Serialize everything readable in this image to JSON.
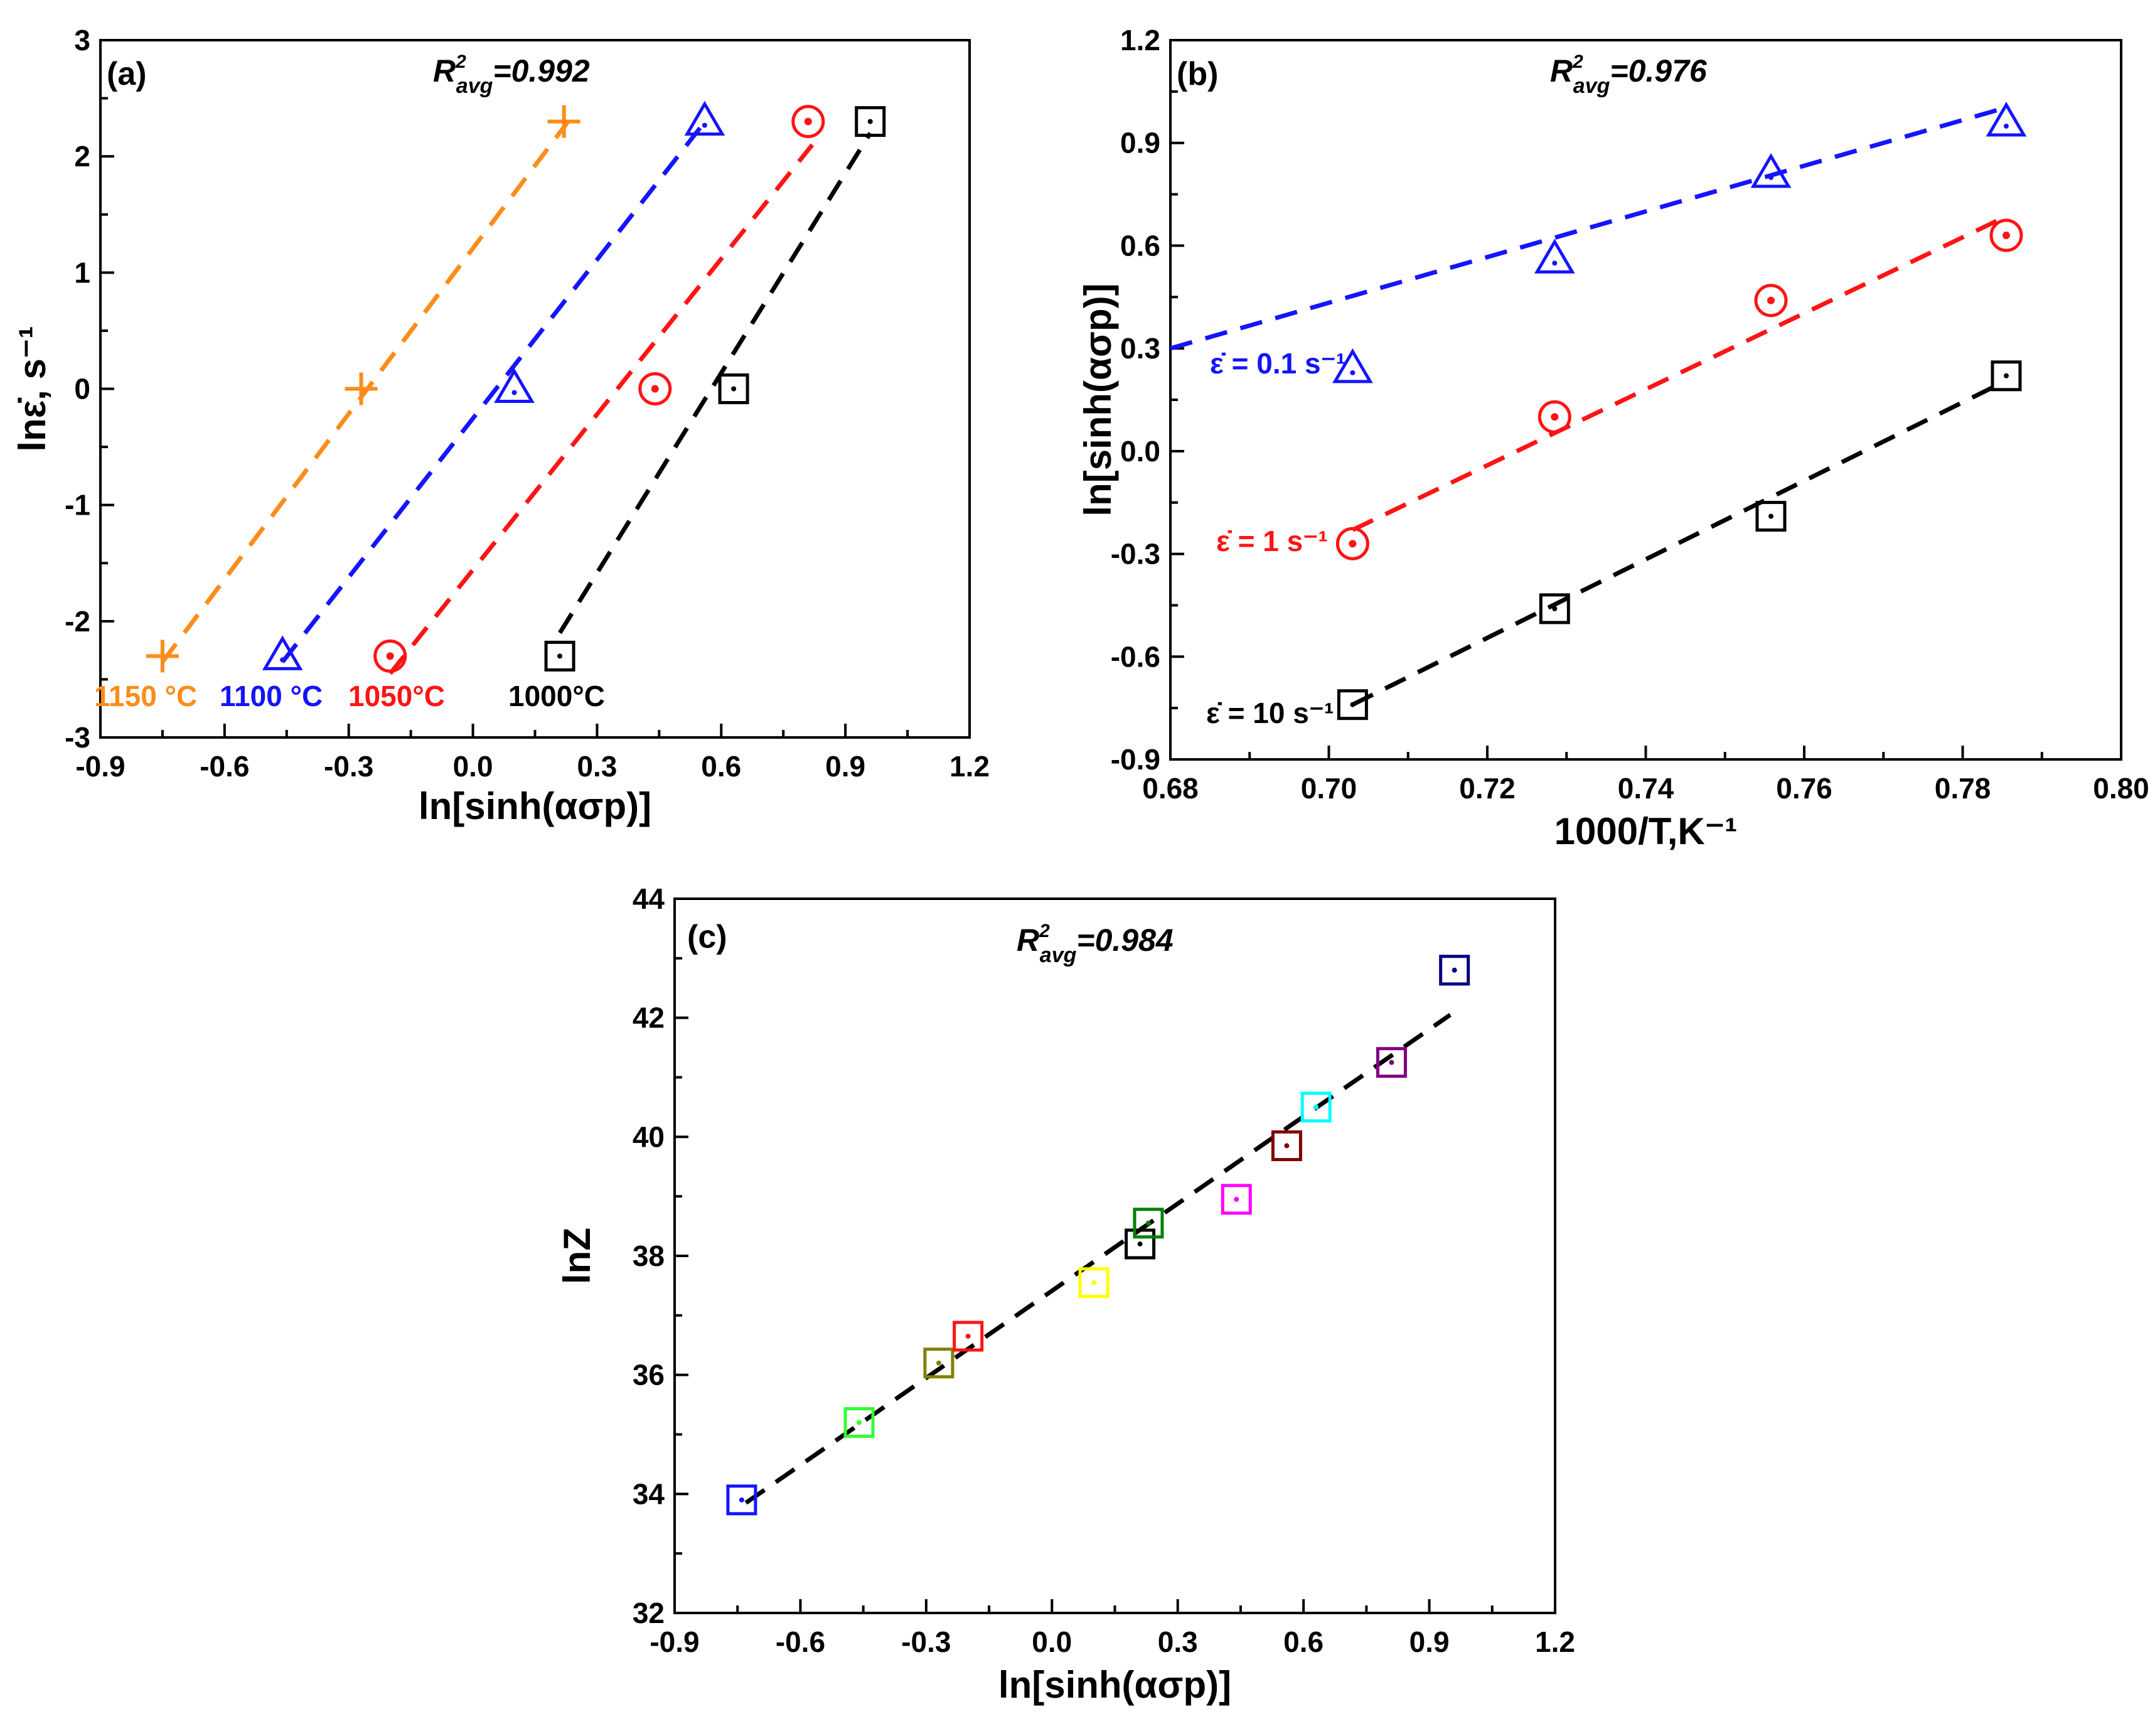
{
  "colors": {
    "orange": "#ff8c1a",
    "blue": "#1414ff",
    "red": "#ff1414",
    "black": "#000000"
  },
  "chart_data": [
    {
      "id": "a",
      "type": "scatter",
      "panel_label": "(a)",
      "r2": {
        "lead": "R",
        "sup": "2",
        "sub": "avg",
        "value": "=0.992"
      },
      "xlabel": "ln[sinh(ασp)]",
      "ylabel": "lnε̇, s⁻¹",
      "xlim": [
        -0.9,
        1.2
      ],
      "ylim": [
        -3,
        3
      ],
      "xticks": [
        -0.9,
        -0.6,
        -0.3,
        0.0,
        0.3,
        0.6,
        0.9,
        1.2
      ],
      "xtick_labels": [
        "-0.9",
        "-0.6",
        "-0.3",
        "0.0",
        "0.3",
        "0.6",
        "0.9",
        "1.2"
      ],
      "yticks": [
        -3,
        -2,
        -1,
        0,
        1,
        2,
        3
      ],
      "ytick_labels": [
        "-3",
        "-2",
        "-1",
        "0",
        "1",
        "2",
        "3"
      ],
      "series": [
        {
          "name": "1150 °C",
          "marker": "plus",
          "color": "#ff8c1a",
          "x": [
            -0.75,
            -0.27,
            0.22
          ],
          "y": [
            -2.3,
            0.0,
            2.3
          ],
          "fit": [
            [
              -0.75,
              -2.35
            ],
            [
              0.23,
              2.3
            ]
          ]
        },
        {
          "name": "1100 °C",
          "marker": "triangle",
          "color": "#1414ff",
          "x": [
            -0.46,
            0.1,
            0.56
          ],
          "y": [
            -2.3,
            0.0,
            2.3
          ],
          "fit": [
            [
              -0.46,
              -2.35
            ],
            [
              0.55,
              2.25
            ]
          ]
        },
        {
          "name": "1050°C",
          "marker": "circle",
          "color": "#ff1414",
          "x": [
            -0.2,
            0.44,
            0.81
          ],
          "y": [
            -2.3,
            0.0,
            2.3
          ],
          "fit": [
            [
              -0.2,
              -2.45
            ],
            [
              0.82,
              2.1
            ]
          ]
        },
        {
          "name": "1000°C",
          "marker": "square",
          "color": "#000000",
          "x": [
            0.21,
            0.63,
            0.96
          ],
          "y": [
            -2.3,
            0.0,
            2.3
          ],
          "fit": [
            [
              0.21,
              -2.1
            ],
            [
              0.96,
              2.2
            ]
          ]
        }
      ]
    },
    {
      "id": "b",
      "type": "scatter",
      "panel_label": "(b)",
      "r2": {
        "lead": "R",
        "sup": "2",
        "sub": "avg",
        "value": "=0.976"
      },
      "xlabel": "1000/T,K⁻¹",
      "ylabel": "ln[sinh(ασp)]",
      "xlim": [
        0.68,
        0.8
      ],
      "ylim": [
        -0.9,
        1.2
      ],
      "xticks": [
        0.68,
        0.7,
        0.72,
        0.74,
        0.76,
        0.78,
        0.8
      ],
      "xtick_labels": [
        "0.68",
        "0.70",
        "0.72",
        "0.74",
        "0.76",
        "0.78",
        "0.80"
      ],
      "yticks": [
        -0.9,
        -0.6,
        -0.3,
        0.0,
        0.3,
        0.6,
        0.9,
        1.2
      ],
      "ytick_labels": [
        "-0.9",
        "-0.6",
        "-0.3",
        "0.0",
        "0.3",
        "0.6",
        "0.9",
        "1.2"
      ],
      "series": [
        {
          "name": "ε̇ = 0.1 s⁻¹",
          "marker": "triangle",
          "color": "#1414ff",
          "x": [
            0.703,
            0.7285,
            0.7558,
            0.7855
          ],
          "y": [
            0.24,
            0.56,
            0.81,
            0.96
          ],
          "fit": [
            [
              0.68,
              0.3
            ],
            [
              0.785,
              1.0
            ]
          ]
        },
        {
          "name": "ε̇ = 1 s⁻¹",
          "marker": "circle",
          "color": "#ff1414",
          "x": [
            0.703,
            0.7285,
            0.7558,
            0.7855
          ],
          "y": [
            -0.27,
            0.1,
            0.44,
            0.63
          ],
          "fit": [
            [
              0.703,
              -0.23
            ],
            [
              0.785,
              0.68
            ]
          ]
        },
        {
          "name": "ε̇ = 10 s⁻¹",
          "marker": "square",
          "color": "#000000",
          "x": [
            0.703,
            0.7285,
            0.7558,
            0.7855
          ],
          "y": [
            -0.74,
            -0.46,
            -0.19,
            0.22
          ],
          "fit": [
            [
              0.703,
              -0.74
            ],
            [
              0.785,
              0.2
            ]
          ]
        }
      ]
    },
    {
      "id": "c",
      "type": "scatter",
      "panel_label": "(c)",
      "r2": {
        "lead": "R",
        "sup": "2",
        "sub": "avg",
        "value": "=0.984"
      },
      "xlabel": "ln[sinh(ασp)]",
      "ylabel": "lnZ",
      "xlim": [
        -0.9,
        1.2
      ],
      "ylim": [
        32,
        44
      ],
      "xticks": [
        -0.9,
        -0.6,
        -0.3,
        0.0,
        0.3,
        0.6,
        0.9,
        1.2
      ],
      "xtick_labels": [
        "-0.9",
        "-0.6",
        "-0.3",
        "0.0",
        "0.3",
        "0.6",
        "0.9",
        "1.2"
      ],
      "yticks": [
        32,
        34,
        36,
        38,
        40,
        42,
        44
      ],
      "ytick_labels": [
        "32",
        "34",
        "36",
        "38",
        "40",
        "42",
        "44"
      ],
      "points": [
        {
          "x": -0.74,
          "y": 33.9,
          "color": "#1414ff"
        },
        {
          "x": -0.46,
          "y": 35.2,
          "color": "#33ff33"
        },
        {
          "x": -0.27,
          "y": 36.2,
          "color": "#808000"
        },
        {
          "x": -0.2,
          "y": 36.65,
          "color": "#ff1414"
        },
        {
          "x": 0.1,
          "y": 37.55,
          "color": "#ffff00"
        },
        {
          "x": 0.21,
          "y": 38.2,
          "color": "#000000"
        },
        {
          "x": 0.23,
          "y": 38.55,
          "color": "#008000"
        },
        {
          "x": 0.44,
          "y": 38.95,
          "color": "#ff00ff"
        },
        {
          "x": 0.56,
          "y": 39.85,
          "color": "#800000"
        },
        {
          "x": 0.63,
          "y": 40.5,
          "color": "#00ffff"
        },
        {
          "x": 0.81,
          "y": 41.25,
          "color": "#800080"
        },
        {
          "x": 0.96,
          "y": 42.8,
          "color": "#000080"
        }
      ],
      "fit": [
        [
          -0.73,
          33.85
        ],
        [
          0.95,
          42.05
        ]
      ]
    }
  ]
}
